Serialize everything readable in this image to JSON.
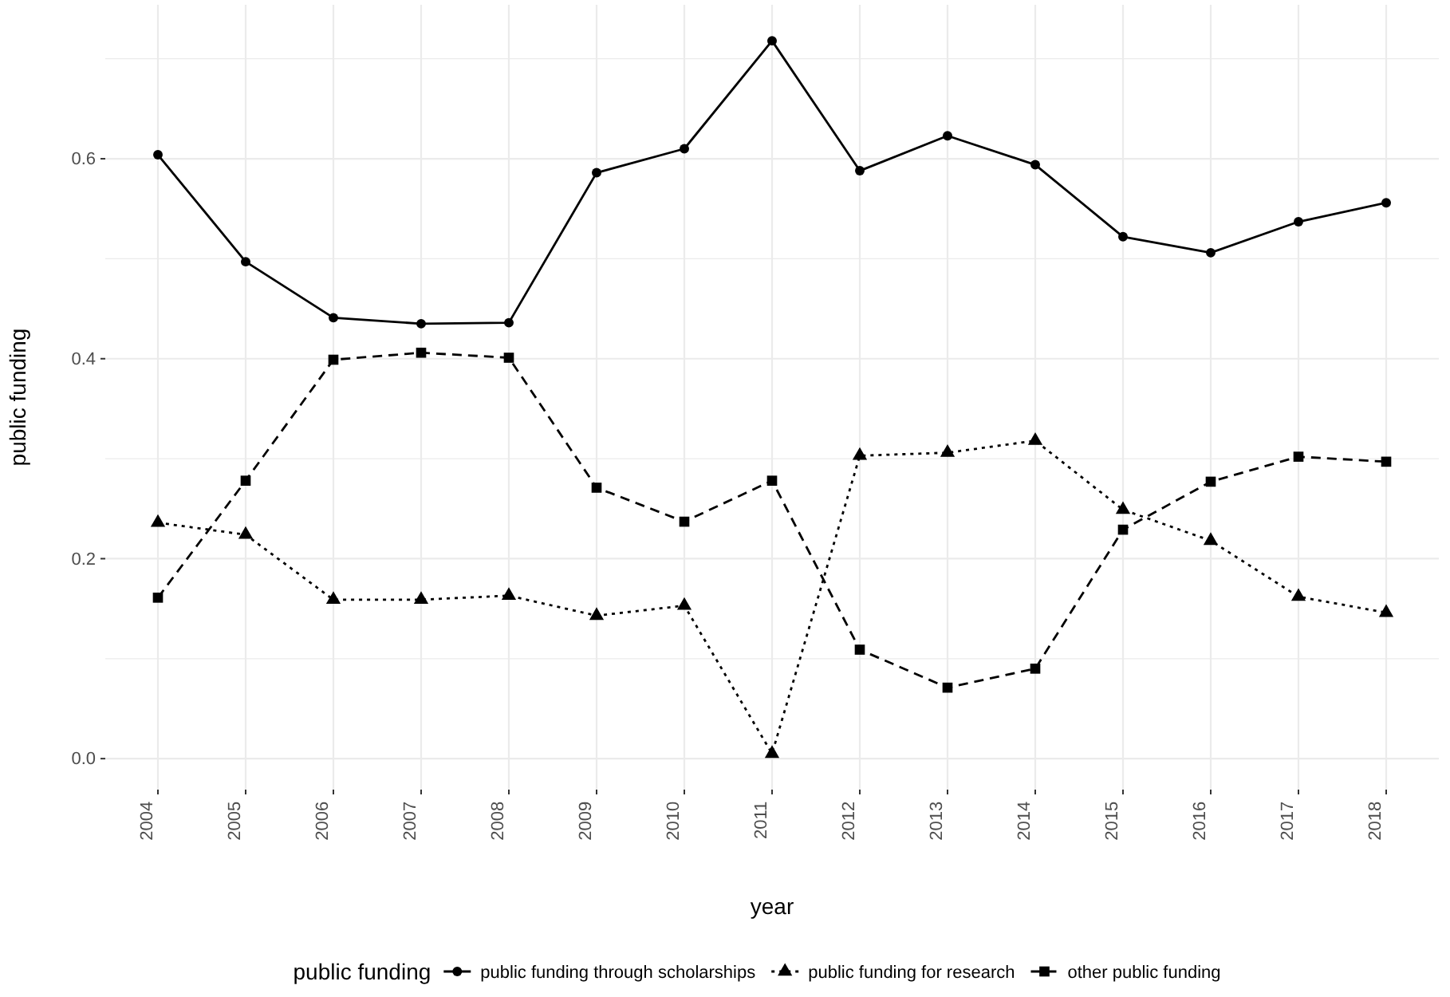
{
  "chart_data": {
    "type": "line",
    "xlabel": "year",
    "ylabel": "public funding",
    "legend_title": "public funding",
    "legend": "bottom",
    "grid": true,
    "categories": [
      "2004",
      "2005",
      "2006",
      "2007",
      "2008",
      "2009",
      "2010",
      "2011",
      "2012",
      "2013",
      "2014",
      "2015",
      "2016",
      "2017",
      "2018"
    ],
    "ylim": [
      -0.031,
      0.754
    ],
    "yticks": [
      {
        "value": 0,
        "label": "0.0"
      },
      0.2,
      0.4,
      0.6
    ],
    "series": [
      {
        "name": "public funding through scholarships",
        "color": "#000000",
        "marker": "circle",
        "line_style": "solid",
        "values": [
          0.604,
          0.497,
          0.441,
          0.435,
          0.436,
          0.586,
          0.61,
          0.718,
          0.588,
          0.623,
          0.594,
          0.522,
          0.506,
          0.537,
          0.556
        ]
      },
      {
        "name": "public funding for research",
        "color": "#000000",
        "marker": "triangle",
        "line_style": "dotted",
        "values": [
          0.236,
          0.224,
          0.159,
          0.159,
          0.163,
          0.143,
          0.153,
          0.005,
          0.303,
          0.306,
          0.318,
          0.249,
          0.218,
          0.162,
          0.146
        ]
      },
      {
        "name": "other public funding",
        "color": "#000000",
        "marker": "square",
        "line_style": "dashed",
        "values": [
          0.161,
          0.278,
          0.399,
          0.406,
          0.401,
          0.271,
          0.237,
          0.278,
          0.109,
          0.071,
          0.09,
          0.229,
          0.277,
          0.302,
          0.297
        ]
      }
    ]
  }
}
